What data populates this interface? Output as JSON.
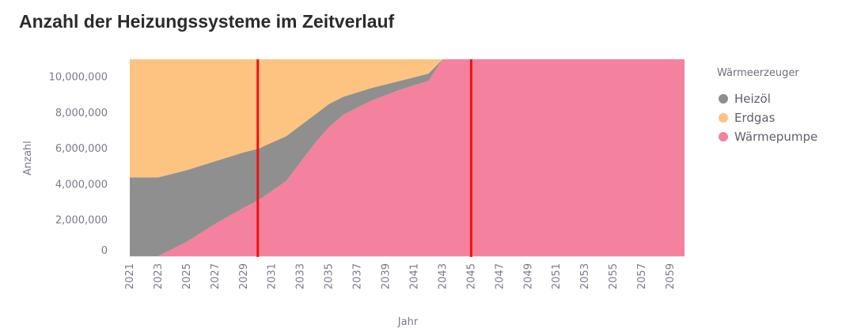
{
  "chart_data": {
    "type": "area",
    "stacked": true,
    "title": "Anzahl der Heizungssysteme im Zeitverlauf",
    "xlabel": "Jahr",
    "ylabel": "Anzahl",
    "ylim": [
      0,
      11000000
    ],
    "xlim": [
      2021,
      2060
    ],
    "y_ticks": [
      0,
      2000000,
      4000000,
      6000000,
      8000000,
      10000000
    ],
    "y_tick_labels": [
      "0",
      "2,000,000",
      "4,000,000",
      "6,000,000",
      "8,000,000",
      "10,000,000"
    ],
    "x_ticks": [
      2021,
      2023,
      2025,
      2027,
      2029,
      2031,
      2033,
      2035,
      2037,
      2039,
      2041,
      2043,
      2045,
      2047,
      2049,
      2051,
      2053,
      2055,
      2057,
      2059
    ],
    "x_tick_labels": [
      "2021",
      "2023",
      "2025",
      "2027",
      "2029",
      "2031",
      "2033",
      "2035",
      "2037",
      "2039",
      "2041",
      "2043",
      "2045",
      "2047",
      "2049",
      "2051",
      "2053",
      "2055",
      "2057",
      "2059"
    ],
    "legend_title": "Wärmeerzeuger",
    "legend_position": "right",
    "vertical_lines": [
      2030,
      2045
    ],
    "x": [
      2021,
      2023,
      2025,
      2027,
      2029,
      2030,
      2032,
      2034,
      2035,
      2036,
      2038,
      2040,
      2042,
      2043,
      2044,
      2060
    ],
    "series": [
      {
        "name": "Wärmepumpe",
        "color": "#f4819d",
        "values": [
          0,
          0,
          800000,
          1800000,
          2700000,
          3100000,
          4200000,
          6300000,
          7200000,
          7900000,
          8700000,
          9300000,
          9800000,
          11000000,
          11000000,
          11000000
        ]
      },
      {
        "name": "Heizöl",
        "color": "#8f8f8f",
        "values": [
          4400000,
          4400000,
          4000000,
          3500000,
          3100000,
          2900000,
          2500000,
          1600000,
          1300000,
          1000000,
          700000,
          500000,
          400000,
          0,
          0,
          0
        ]
      },
      {
        "name": "Erdgas",
        "color": "#fcc381",
        "values": [
          6600000,
          6600000,
          6200000,
          5700000,
          5200000,
          5000000,
          4300000,
          3100000,
          2500000,
          2100000,
          1600000,
          1200000,
          800000,
          0,
          0,
          0
        ]
      }
    ],
    "legend_items": [
      {
        "name": "Heizöl",
        "color": "#8f8f8f"
      },
      {
        "name": "Erdgas",
        "color": "#fcc381"
      },
      {
        "name": "Wärmepumpe",
        "color": "#f4819d"
      }
    ],
    "marker_color": "#ee1111"
  }
}
